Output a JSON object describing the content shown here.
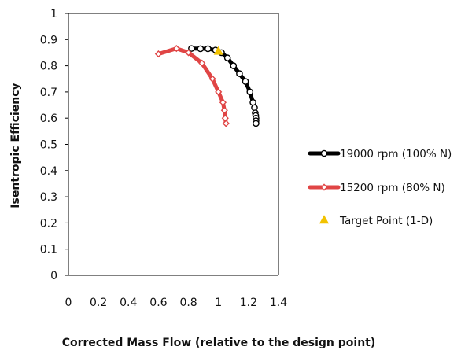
{
  "chart_data": {
    "type": "scatter",
    "title": "",
    "xlabel": "Corrected Mass Flow (relative to the design point)",
    "ylabel": "Isentropic Efficiency",
    "xlim": [
      0,
      1.4
    ],
    "ylim": [
      0,
      1
    ],
    "x_ticks": [
      "0",
      "0.2",
      "0.4",
      "0.6",
      "0.8",
      "1",
      "1.2",
      "1.4"
    ],
    "y_ticks": [
      "0",
      "0.1",
      "0.2",
      "0.3",
      "0.4",
      "0.5",
      "0.6",
      "0.7",
      "0.8",
      "0.9",
      "1"
    ],
    "grid": false,
    "legend_position": "right",
    "series": [
      {
        "name": "19000 rpm (100% N)",
        "color": "#000000",
        "marker": "circle",
        "line": true,
        "x": [
          0.82,
          0.88,
          0.93,
          0.98,
          1.02,
          1.06,
          1.1,
          1.14,
          1.18,
          1.21,
          1.23,
          1.24,
          1.245,
          1.248,
          1.25,
          1.25,
          1.25
        ],
        "y": [
          0.866,
          0.865,
          0.865,
          0.86,
          0.85,
          0.83,
          0.8,
          0.77,
          0.74,
          0.7,
          0.66,
          0.64,
          0.62,
          0.61,
          0.6,
          0.59,
          0.58
        ]
      },
      {
        "name": "15200 rpm (80% N)",
        "color": "#e04545",
        "marker": "diamond",
        "line": true,
        "x": [
          0.6,
          0.72,
          0.8,
          0.89,
          0.96,
          1.0,
          1.03,
          1.04,
          1.045,
          1.05
        ],
        "y": [
          0.845,
          0.866,
          0.85,
          0.81,
          0.75,
          0.7,
          0.66,
          0.63,
          0.6,
          0.58
        ]
      },
      {
        "name": "Target Point (1-D)",
        "color": "#f2c200",
        "marker": "triangle",
        "line": false,
        "x": [
          1.0
        ],
        "y": [
          0.855
        ]
      }
    ]
  }
}
